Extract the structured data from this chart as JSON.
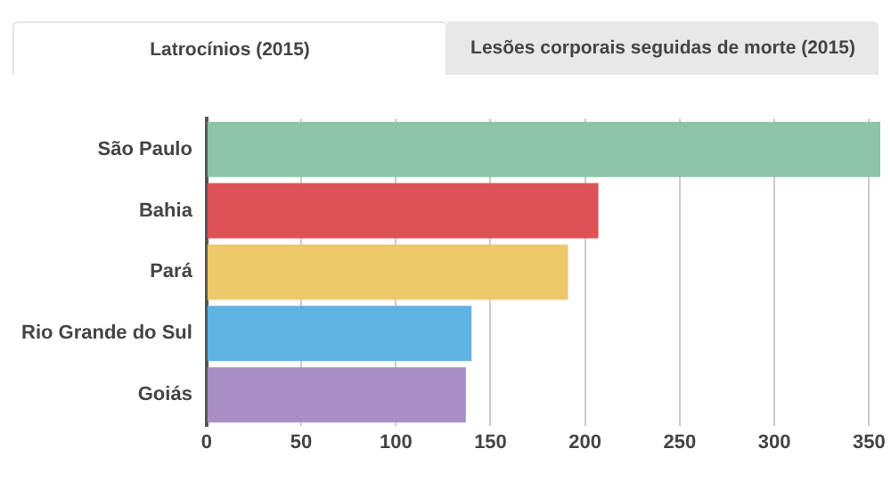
{
  "chart_data": {
    "type": "bar",
    "orientation": "horizontal",
    "title": "Latrocínios (2015)",
    "subtitle": "Lesões corporais seguidas de morte (2015)",
    "categories": [
      "São Paulo",
      "Bahia",
      "Pará",
      "Rio Grande do Sul",
      "Goiás"
    ],
    "values": [
      356,
      207,
      191,
      140,
      137
    ],
    "colors": [
      "#8dc3a7",
      "#dc5257",
      "#eec96a",
      "#5db4e3",
      "#aa8fc6"
    ],
    "xlim": [
      0,
      356
    ],
    "xticks": [
      0,
      50,
      100,
      150,
      200,
      250,
      300,
      350
    ],
    "grid": "x",
    "legend": false
  }
}
